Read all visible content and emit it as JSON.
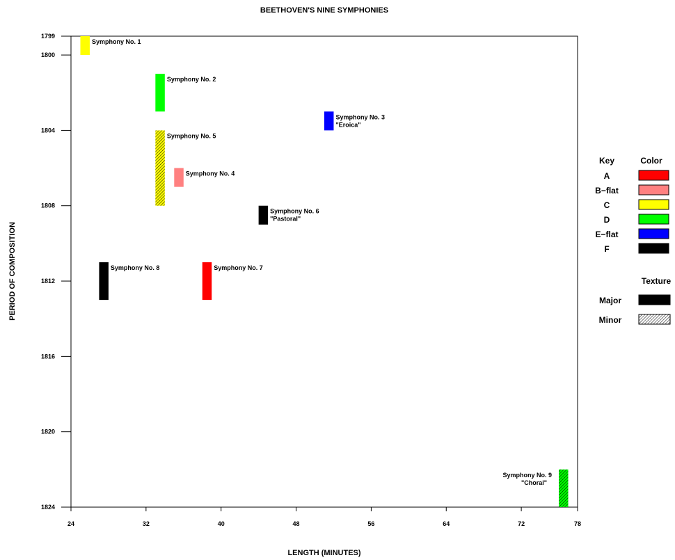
{
  "chart_data": {
    "type": "bar",
    "title": "BEETHOVEN'S NINE SYMPHONIES",
    "xlabel": "LENGTH (MINUTES)",
    "ylabel": "PERIOD OF COMPOSITION",
    "xlim": [
      24,
      78
    ],
    "ylim": [
      1799,
      1824
    ],
    "y_inverted": true,
    "grid": false,
    "x_ticks": [
      24,
      32,
      40,
      48,
      56,
      64,
      72,
      78
    ],
    "y_ticks": [
      1799,
      1800,
      1804,
      1808,
      1812,
      1816,
      1820,
      1824
    ],
    "bar_width_minutes": 1,
    "series": [
      {
        "label": "Symphony No. 1",
        "subtitle": "",
        "length": 25.5,
        "start": 1799,
        "end": 1800,
        "key": "C",
        "texture": "Major",
        "label_side": "right"
      },
      {
        "label": "Symphony No. 2",
        "subtitle": "",
        "length": 33.5,
        "start": 1801,
        "end": 1803,
        "key": "D",
        "texture": "Major",
        "label_side": "right"
      },
      {
        "label": "Symphony No. 3",
        "subtitle": "\"Eroica\"",
        "length": 51.5,
        "start": 1803,
        "end": 1804,
        "key": "E-flat",
        "texture": "Major",
        "label_side": "right"
      },
      {
        "label": "Symphony No. 5",
        "subtitle": "",
        "length": 33.5,
        "start": 1804,
        "end": 1808,
        "key": "C",
        "texture": "Minor",
        "label_side": "right"
      },
      {
        "label": "Symphony No. 4",
        "subtitle": "",
        "length": 35.5,
        "start": 1806,
        "end": 1807,
        "key": "B-flat",
        "texture": "Major",
        "label_side": "right"
      },
      {
        "label": "Symphony No. 6",
        "subtitle": "\"Pastoral\"",
        "length": 44.5,
        "start": 1808,
        "end": 1809,
        "key": "F",
        "texture": "Major",
        "label_side": "right"
      },
      {
        "label": "Symphony No. 8",
        "subtitle": "",
        "length": 27.5,
        "start": 1811,
        "end": 1813,
        "key": "F",
        "texture": "Major",
        "label_side": "right"
      },
      {
        "label": "Symphony No. 7",
        "subtitle": "",
        "length": 38.5,
        "start": 1811,
        "end": 1813,
        "key": "A",
        "texture": "Major",
        "label_side": "right"
      },
      {
        "label": "Symphony No. 9",
        "subtitle": "\"Choral\"",
        "length": 76.5,
        "start": 1822,
        "end": 1824,
        "key": "D",
        "texture": "Minor",
        "label_side": "left"
      }
    ],
    "legend": {
      "placement": "right",
      "key_header": "Key",
      "color_header": "Color",
      "keys": [
        {
          "name": "A",
          "color": "#ff0000"
        },
        {
          "name": "B−flat",
          "color": "#ff8080"
        },
        {
          "name": "C",
          "color": "#ffff00"
        },
        {
          "name": "D",
          "color": "#00ff00"
        },
        {
          "name": "E−flat",
          "color": "#0000ff"
        },
        {
          "name": "F",
          "color": "#000000"
        }
      ],
      "texture_header": "Texture",
      "textures": [
        {
          "name": "Major",
          "pattern": "solid"
        },
        {
          "name": "Minor",
          "pattern": "hatched"
        }
      ]
    }
  }
}
